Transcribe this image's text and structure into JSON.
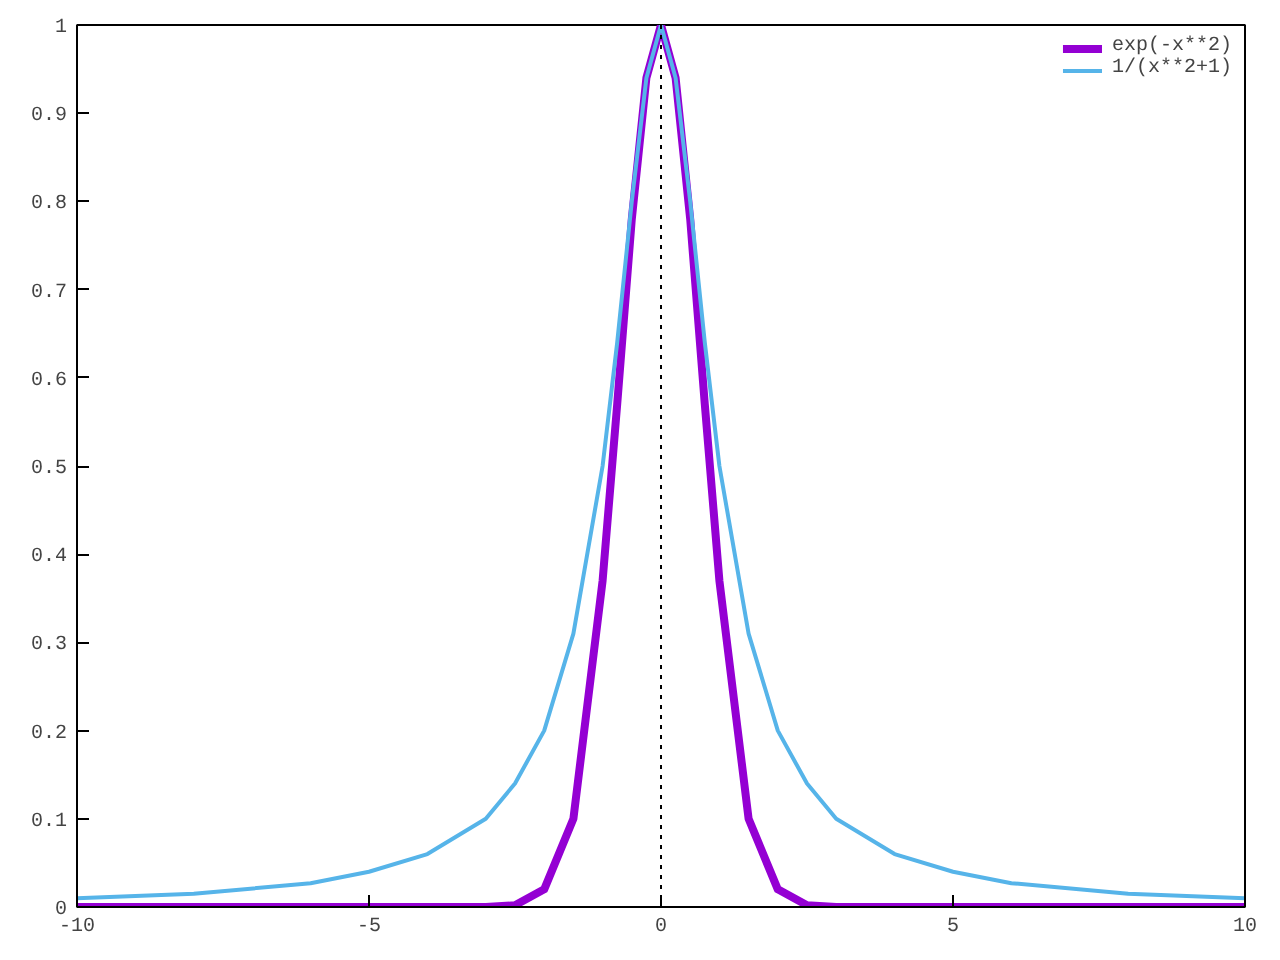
{
  "chart_data": {
    "type": "line",
    "xlim": [
      -10,
      10
    ],
    "ylim": [
      0,
      1
    ],
    "xticks": [
      {
        "value": -10,
        "label": "-10"
      },
      {
        "value": -5,
        "label": "-5"
      },
      0,
      5,
      10
    ],
    "yticks": [
      0,
      0.1,
      0.2,
      0.3,
      0.4,
      0.5,
      0.6,
      0.7,
      0.8,
      0.9,
      1
    ],
    "grid": false,
    "legend": "top right",
    "marker": "none",
    "line_style": "solid",
    "ref_lines": [
      {
        "axis": "x",
        "value": 0,
        "line_style": "dotted",
        "color": "#000000"
      }
    ],
    "series": [
      {
        "name": "exp(-x**2)",
        "color": "#9400d3",
        "x": [
          -10,
          -3,
          -2.5,
          -2,
          -1.5,
          -1,
          -0.75,
          -0.5,
          -0.25,
          0,
          0.25,
          0.5,
          0.75,
          1,
          1.5,
          2,
          2.5,
          3,
          10
        ],
        "values": [
          0,
          0,
          0.002,
          0.02,
          0.1,
          0.37,
          0.57,
          0.78,
          0.94,
          1,
          0.94,
          0.78,
          0.57,
          0.37,
          0.1,
          0.02,
          0.002,
          0,
          0
        ]
      },
      {
        "name": "1/(x**2+1)",
        "color": "#56b4e9",
        "x": [
          -10,
          -8,
          -6,
          -5,
          -4,
          -3,
          -2.5,
          -2,
          -1.5,
          -1,
          -0.75,
          -0.5,
          -0.25,
          0,
          0.25,
          0.5,
          0.75,
          1,
          1.5,
          2,
          2.5,
          3,
          4,
          5,
          6,
          8,
          10
        ],
        "values": [
          0.01,
          0.015,
          0.027,
          0.04,
          0.06,
          0.1,
          0.14,
          0.2,
          0.31,
          0.5,
          0.64,
          0.8,
          0.94,
          1,
          0.94,
          0.8,
          0.64,
          0.5,
          0.31,
          0.2,
          0.14,
          0.1,
          0.06,
          0.04,
          0.027,
          0.015,
          0.01
        ]
      }
    ]
  }
}
